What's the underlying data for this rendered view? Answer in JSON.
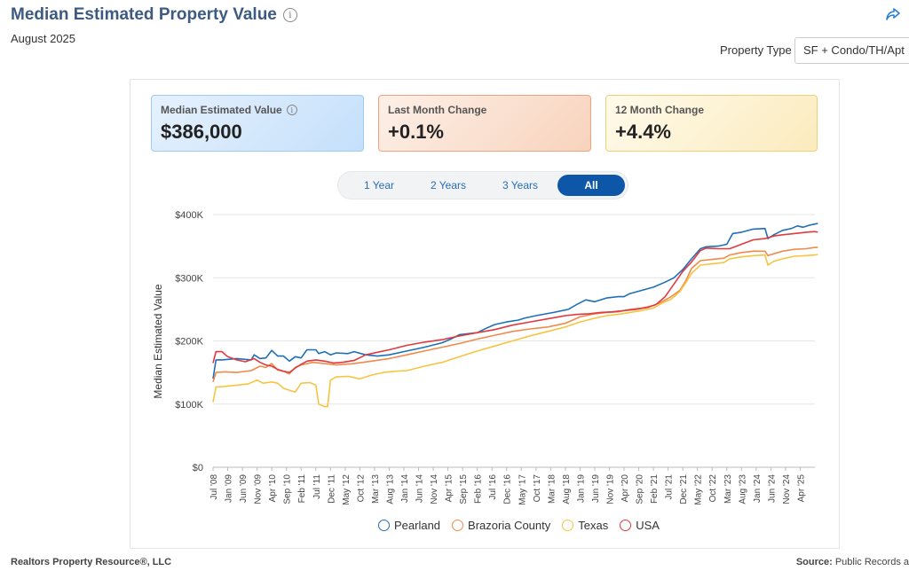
{
  "header": {
    "title": "Median Estimated Property Value",
    "subtitle": "August 2025",
    "property_type_label": "Property Type",
    "property_type_value": "SF + Condo/TH/Apt"
  },
  "cards": {
    "median": {
      "label": "Median Estimated Value",
      "value": "$386,000"
    },
    "last_month": {
      "label": "Last Month Change",
      "value": "+0.1%"
    },
    "twelve_month": {
      "label": "12 Month Change",
      "value": "+4.4%"
    }
  },
  "range_buttons": [
    "1 Year",
    "2 Years",
    "3 Years",
    "All"
  ],
  "range_selected": "All",
  "footer": {
    "left": "Realtors Property Resource®, LLC",
    "source_label": "Source:",
    "source_value": "Public Records a"
  },
  "colors": {
    "pearland": "#1f6fb8",
    "brazoria": "#f08a4b",
    "texas": "#f5c542",
    "usa": "#e0393e"
  },
  "chart_data": {
    "type": "line",
    "ylabel": "Median Estimated Value",
    "ylim": [
      0,
      400000
    ],
    "yticks": [
      0,
      100000,
      200000,
      300000,
      400000
    ],
    "ytick_labels": [
      "$0",
      "$100K",
      "$200K",
      "$300K",
      "$400K"
    ],
    "x_start": "2008-07",
    "x_end": "2025-08",
    "xtick_labels": [
      "Jul '08",
      "Jan '09",
      "Jun '09",
      "Nov '09",
      "Apr '10",
      "Sep '10",
      "Feb '11",
      "Jul '11",
      "Dec '11",
      "May '12",
      "Oct '12",
      "Mar '13",
      "Aug '13",
      "Jan '14",
      "Jun '14",
      "Nov '14",
      "Apr '15",
      "Sep '15",
      "Feb '16",
      "Jul '16",
      "Dec '16",
      "May '17",
      "Oct '17",
      "Mar '18",
      "Aug '18",
      "Jan '19",
      "Jun '19",
      "Nov '19",
      "Apr '20",
      "Sep '20",
      "Feb '21",
      "Jul '21",
      "Dec '21",
      "May '22",
      "Oct '22",
      "Mar '23",
      "Aug '23",
      "Jan '24",
      "Jun '24",
      "Nov '24",
      "Apr '25"
    ],
    "series": [
      {
        "name": "Pearland",
        "color_key": "pearland",
        "points": [
          [
            0,
            140000
          ],
          [
            1,
            170000
          ],
          [
            3,
            170000
          ],
          [
            8,
            172000
          ],
          [
            13,
            170000
          ],
          [
            14,
            178000
          ],
          [
            16,
            172000
          ],
          [
            18,
            173000
          ],
          [
            20,
            185000
          ],
          [
            22,
            176000
          ],
          [
            24,
            176000
          ],
          [
            26,
            168000
          ],
          [
            28,
            175000
          ],
          [
            30,
            173000
          ],
          [
            32,
            186000
          ],
          [
            35,
            186000
          ],
          [
            36,
            180000
          ],
          [
            38,
            183000
          ],
          [
            40,
            178000
          ],
          [
            42,
            181000
          ],
          [
            46,
            180000
          ],
          [
            48,
            183000
          ],
          [
            52,
            178000
          ],
          [
            56,
            176000
          ],
          [
            60,
            178000
          ],
          [
            66,
            184000
          ],
          [
            72,
            190000
          ],
          [
            78,
            197000
          ],
          [
            81,
            203000
          ],
          [
            84,
            210000
          ],
          [
            90,
            213000
          ],
          [
            93,
            220000
          ],
          [
            96,
            226000
          ],
          [
            100,
            230000
          ],
          [
            104,
            233000
          ],
          [
            106,
            236000
          ],
          [
            110,
            240000
          ],
          [
            116,
            245000
          ],
          [
            121,
            250000
          ],
          [
            124,
            258000
          ],
          [
            127,
            265000
          ],
          [
            130,
            262000
          ],
          [
            134,
            268000
          ],
          [
            138,
            270000
          ],
          [
            140,
            270000
          ],
          [
            142,
            275000
          ],
          [
            146,
            280000
          ],
          [
            150,
            285000
          ],
          [
            154,
            293000
          ],
          [
            157,
            300000
          ],
          [
            160,
            313000
          ],
          [
            163,
            330000
          ],
          [
            166,
            346000
          ],
          [
            168,
            349000
          ],
          [
            172,
            350000
          ],
          [
            175,
            353000
          ],
          [
            177,
            370000
          ],
          [
            180,
            372000
          ],
          [
            184,
            377000
          ],
          [
            188,
            378000
          ],
          [
            189,
            362000
          ],
          [
            191,
            368000
          ],
          [
            194,
            375000
          ],
          [
            197,
            378000
          ],
          [
            199,
            382000
          ],
          [
            201,
            380000
          ],
          [
            203,
            383000
          ],
          [
            205,
            385000
          ],
          [
            206,
            386000
          ]
        ]
      },
      {
        "name": "Brazoria County",
        "color_key": "brazoria",
        "points": [
          [
            0,
            135000
          ],
          [
            1,
            150000
          ],
          [
            4,
            151000
          ],
          [
            8,
            150000
          ],
          [
            13,
            153000
          ],
          [
            16,
            160000
          ],
          [
            18,
            158000
          ],
          [
            20,
            164000
          ],
          [
            22,
            154000
          ],
          [
            24,
            152000
          ],
          [
            26,
            148000
          ],
          [
            28,
            158000
          ],
          [
            30,
            162000
          ],
          [
            34,
            166000
          ],
          [
            38,
            164000
          ],
          [
            42,
            162000
          ],
          [
            48,
            164000
          ],
          [
            54,
            168000
          ],
          [
            60,
            172000
          ],
          [
            66,
            178000
          ],
          [
            72,
            184000
          ],
          [
            78,
            190000
          ],
          [
            84,
            196000
          ],
          [
            90,
            203000
          ],
          [
            96,
            209000
          ],
          [
            102,
            215000
          ],
          [
            108,
            219000
          ],
          [
            114,
            222000
          ],
          [
            120,
            228000
          ],
          [
            125,
            238000
          ],
          [
            130,
            243000
          ],
          [
            134,
            245000
          ],
          [
            138,
            246000
          ],
          [
            142,
            250000
          ],
          [
            146,
            252000
          ],
          [
            150,
            256000
          ],
          [
            153,
            262000
          ],
          [
            156,
            270000
          ],
          [
            159,
            280000
          ],
          [
            161,
            295000
          ],
          [
            163,
            315000
          ],
          [
            166,
            327000
          ],
          [
            170,
            329000
          ],
          [
            174,
            331000
          ],
          [
            176,
            336000
          ],
          [
            180,
            340000
          ],
          [
            184,
            342000
          ],
          [
            188,
            342000
          ],
          [
            189,
            335000
          ],
          [
            191,
            338000
          ],
          [
            194,
            342000
          ],
          [
            198,
            345000
          ],
          [
            202,
            346000
          ],
          [
            205,
            348000
          ],
          [
            206,
            348000
          ]
        ]
      },
      {
        "name": "Texas",
        "color_key": "texas",
        "points": [
          [
            0,
            103000
          ],
          [
            1,
            127000
          ],
          [
            4,
            128000
          ],
          [
            8,
            130000
          ],
          [
            12,
            132000
          ],
          [
            15,
            138000
          ],
          [
            17,
            133000
          ],
          [
            20,
            135000
          ],
          [
            22,
            133000
          ],
          [
            24,
            125000
          ],
          [
            26,
            122000
          ],
          [
            28,
            119000
          ],
          [
            30,
            133000
          ],
          [
            33,
            134000
          ],
          [
            35,
            130000
          ],
          [
            36,
            100000
          ],
          [
            38,
            96000
          ],
          [
            39,
            96000
          ],
          [
            40,
            138000
          ],
          [
            42,
            143000
          ],
          [
            46,
            144000
          ],
          [
            50,
            140000
          ],
          [
            54,
            146000
          ],
          [
            58,
            150000
          ],
          [
            62,
            152000
          ],
          [
            66,
            153000
          ],
          [
            72,
            160000
          ],
          [
            78,
            166000
          ],
          [
            84,
            175000
          ],
          [
            90,
            184000
          ],
          [
            96,
            192000
          ],
          [
            102,
            200000
          ],
          [
            108,
            208000
          ],
          [
            114,
            215000
          ],
          [
            120,
            222000
          ],
          [
            125,
            230000
          ],
          [
            130,
            236000
          ],
          [
            134,
            240000
          ],
          [
            138,
            242000
          ],
          [
            142,
            245000
          ],
          [
            146,
            248000
          ],
          [
            150,
            252000
          ],
          [
            153,
            260000
          ],
          [
            156,
            266000
          ],
          [
            159,
            278000
          ],
          [
            161,
            292000
          ],
          [
            163,
            307000
          ],
          [
            166,
            320000
          ],
          [
            170,
            322000
          ],
          [
            174,
            324000
          ],
          [
            176,
            330000
          ],
          [
            180,
            333000
          ],
          [
            184,
            335000
          ],
          [
            188,
            336000
          ],
          [
            189,
            320000
          ],
          [
            191,
            326000
          ],
          [
            194,
            330000
          ],
          [
            198,
            334000
          ],
          [
            202,
            335000
          ],
          [
            205,
            336000
          ],
          [
            206,
            337000
          ]
        ]
      },
      {
        "name": "USA",
        "color_key": "usa",
        "points": [
          [
            0,
            165000
          ],
          [
            1,
            183000
          ],
          [
            3,
            183000
          ],
          [
            5,
            175000
          ],
          [
            8,
            170000
          ],
          [
            11,
            167000
          ],
          [
            14,
            172000
          ],
          [
            16,
            166000
          ],
          [
            18,
            162000
          ],
          [
            20,
            160000
          ],
          [
            22,
            155000
          ],
          [
            24,
            152000
          ],
          [
            26,
            150000
          ],
          [
            28,
            157000
          ],
          [
            30,
            163000
          ],
          [
            32,
            168000
          ],
          [
            35,
            170000
          ],
          [
            38,
            168000
          ],
          [
            41,
            165000
          ],
          [
            44,
            166000
          ],
          [
            48,
            169000
          ],
          [
            52,
            178000
          ],
          [
            56,
            182000
          ],
          [
            60,
            186000
          ],
          [
            66,
            193000
          ],
          [
            72,
            198000
          ],
          [
            78,
            202000
          ],
          [
            84,
            208000
          ],
          [
            90,
            213000
          ],
          [
            96,
            218000
          ],
          [
            102,
            225000
          ],
          [
            108,
            230000
          ],
          [
            114,
            235000
          ],
          [
            120,
            240000
          ],
          [
            124,
            242000
          ],
          [
            128,
            243000
          ],
          [
            132,
            245000
          ],
          [
            136,
            246000
          ],
          [
            140,
            248000
          ],
          [
            144,
            250000
          ],
          [
            148,
            253000
          ],
          [
            151,
            258000
          ],
          [
            154,
            270000
          ],
          [
            157,
            290000
          ],
          [
            160,
            310000
          ],
          [
            163,
            325000
          ],
          [
            166,
            343000
          ],
          [
            168,
            347000
          ],
          [
            172,
            346000
          ],
          [
            176,
            346000
          ],
          [
            180,
            353000
          ],
          [
            184,
            360000
          ],
          [
            188,
            362000
          ],
          [
            191,
            366000
          ],
          [
            194,
            368000
          ],
          [
            198,
            370000
          ],
          [
            202,
            372000
          ],
          [
            205,
            373000
          ],
          [
            206,
            372000
          ]
        ]
      }
    ]
  }
}
